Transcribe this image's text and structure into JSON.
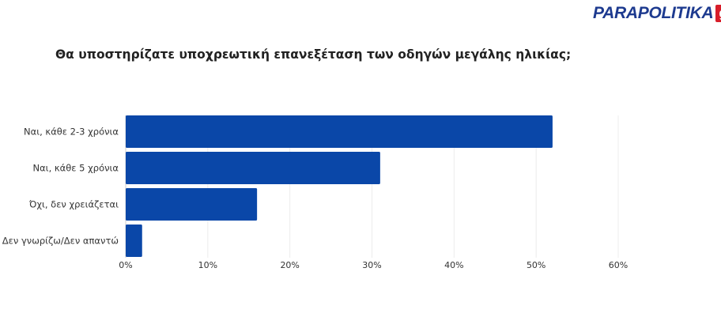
{
  "brand": {
    "name": "PARAPOLITIKA",
    "badge": "gr",
    "colors": {
      "name": "#1d3a8f",
      "badge": "#d81e2a"
    }
  },
  "chart_data": {
    "type": "bar",
    "orientation": "horizontal",
    "title": "Θα υποστηρίζατε υποχρεωτική επανεξέταση των οδηγών μεγάλης ηλικίας;",
    "categories": [
      "Ναι, κάθε 2-3 χρόνια",
      "Ναι, κάθε 5 χρόνια",
      "Όχι, δεν χρειάζεται",
      "Δεν γνωρίζω/Δεν απαντώ"
    ],
    "values": [
      52,
      31,
      16,
      2
    ],
    "xlim": [
      0,
      60
    ],
    "xticks": [
      0,
      10,
      20,
      30,
      40,
      50,
      60
    ],
    "xtick_labels": [
      "0%",
      "10%",
      "20%",
      "30%",
      "40%",
      "50%",
      "60%"
    ],
    "bar_color": "#0a47a8",
    "grid": true
  }
}
